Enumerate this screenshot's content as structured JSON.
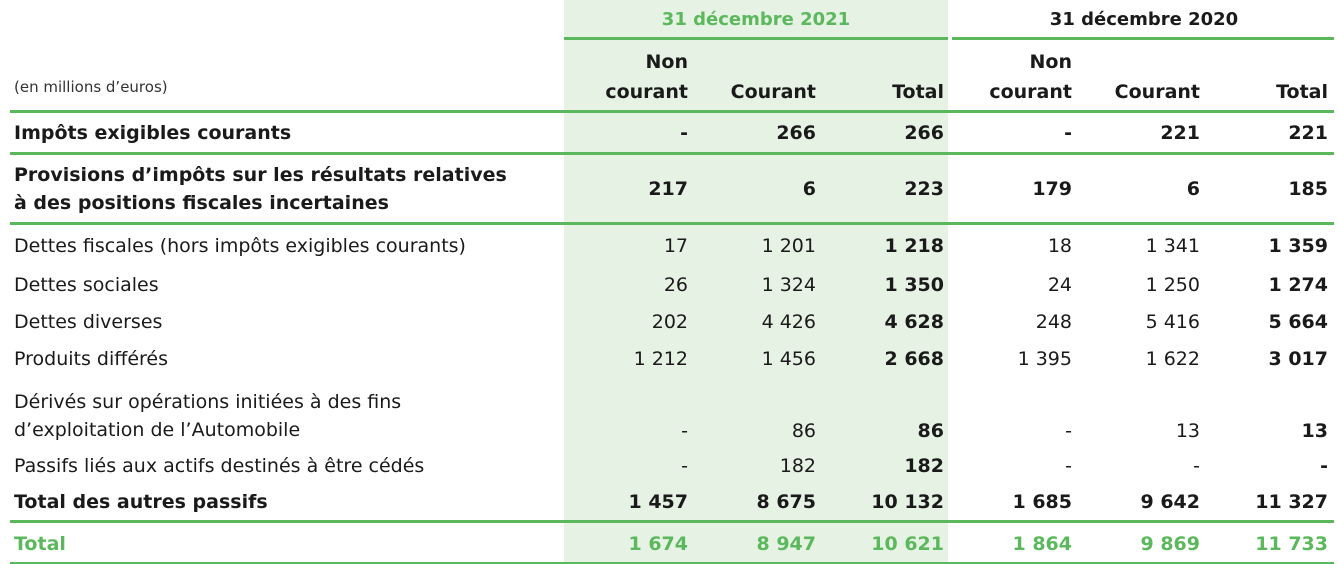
{
  "header": {
    "period_2021": "31 décembre 2021",
    "period_2020": "31 décembre 2020",
    "unit": "(en millions d’euros)",
    "col_non": "Non",
    "col_courant_sub": "courant",
    "col_courant": "Courant",
    "col_total": "Total"
  },
  "rows": [
    {
      "label": "Impôts exigibles courants",
      "v": [
        "-",
        "266",
        "266",
        "-",
        "221",
        "221"
      ]
    },
    {
      "label1": "Provisions d’impôts sur les résultats relatives",
      "label2": "à des positions fiscales incertaines",
      "v": [
        "217",
        "6",
        "223",
        "179",
        "6",
        "185"
      ]
    },
    {
      "label": "Dettes fiscales (hors impôts exigibles courants)",
      "v": [
        "17",
        "1 201",
        "1 218",
        "18",
        "1 341",
        "1 359"
      ]
    },
    {
      "label": "Dettes sociales",
      "v": [
        "26",
        "1 324",
        "1 350",
        "24",
        "1 250",
        "1 274"
      ]
    },
    {
      "label": "Dettes diverses",
      "v": [
        "202",
        "4 426",
        "4 628",
        "248",
        "5 416",
        "5 664"
      ]
    },
    {
      "label": "Produits différés",
      "v": [
        "1 212",
        "1 456",
        "2 668",
        "1 395",
        "1 622",
        "3 017"
      ]
    },
    {
      "label1": "Dérivés sur opérations initiées à des fins",
      "label2": "d’exploitation de l’Automobile",
      "v": [
        "-",
        "86",
        "86",
        "-",
        "13",
        "13"
      ]
    },
    {
      "label": "Passifs liés aux actifs destinés à être cédés",
      "v": [
        "-",
        "182",
        "182",
        "-",
        "-",
        "-"
      ]
    },
    {
      "label": "Total des autres passifs",
      "v": [
        "1 457",
        "8 675",
        "10 132",
        "1 685",
        "9 642",
        "11 327"
      ]
    },
    {
      "label": "Total",
      "v": [
        "1 674",
        "8 947",
        "10 621",
        "1 864",
        "9 869",
        "11 733"
      ]
    }
  ],
  "colors": {
    "accent": "#5cb85c",
    "highlight": "#e6f2e4"
  }
}
